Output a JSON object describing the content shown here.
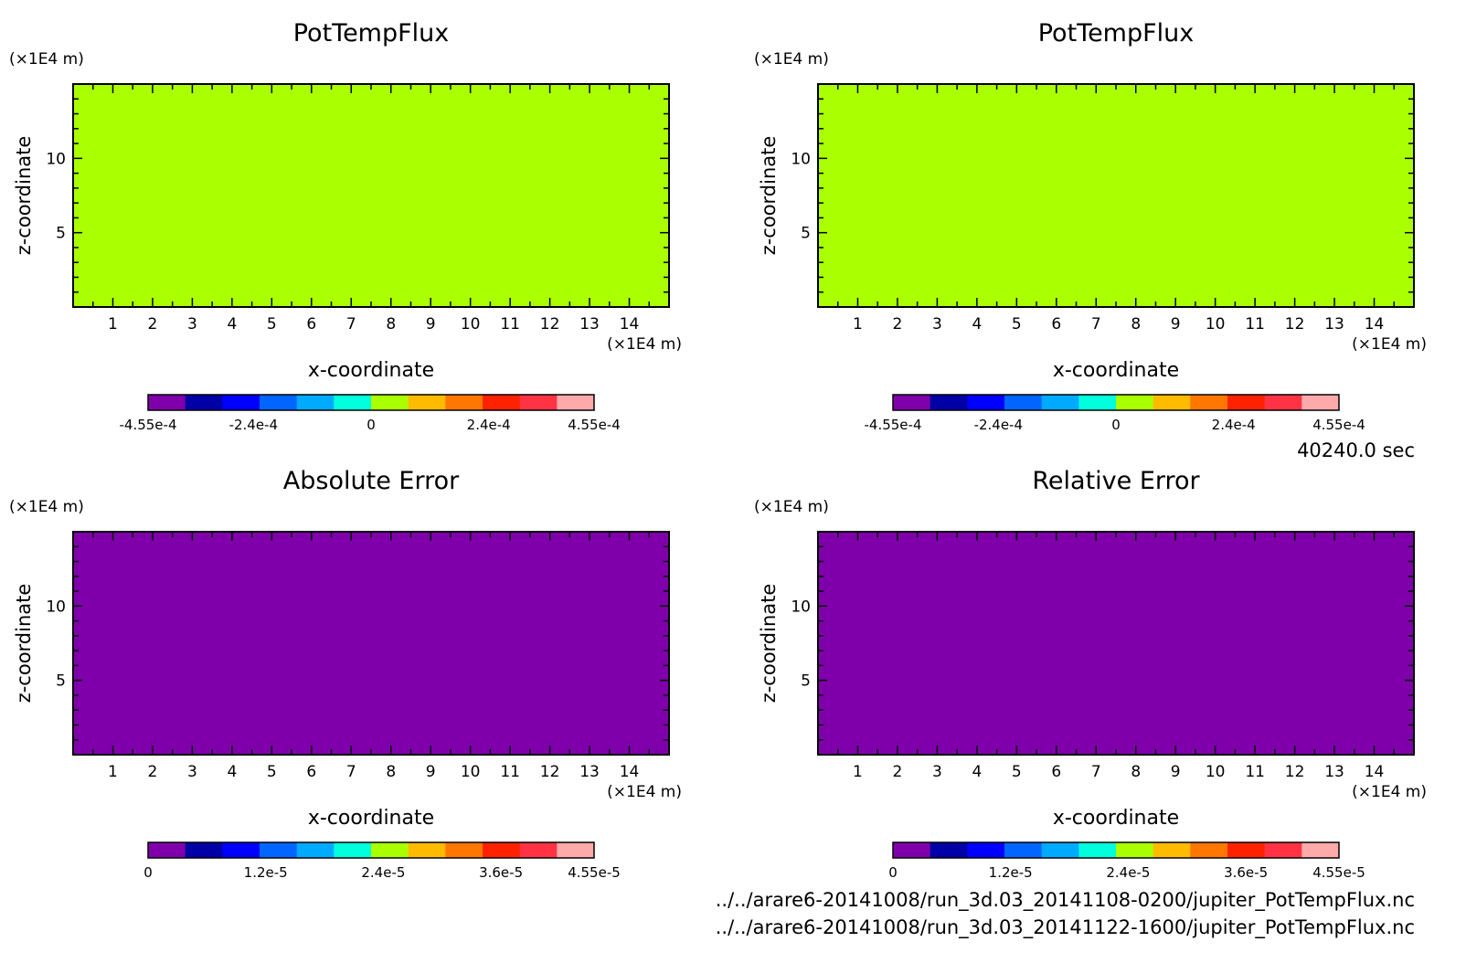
{
  "time_label": "40240.0 sec",
  "file_paths": [
    "../../arare6-20141008/run_3d.03_20141108-0200/jupiter_PotTempFlux.nc",
    "../../arare6-20141008/run_3d.03_20141122-1600/jupiter_PotTempFlux.nc"
  ],
  "colors": {
    "scale": [
      "#7f00ab",
      "#0000a6",
      "#0000ff",
      "#0066ff",
      "#00aaff",
      "#00ffdd",
      "#aaff00",
      "#ffbb00",
      "#ff7700",
      "#ff2200",
      "#ff3344",
      "#ffaaaa"
    ],
    "frame": "#000000"
  },
  "chart_data": [
    {
      "type": "heatmap",
      "title": "PotTempFlux",
      "xlabel": "x-coordinate",
      "ylabel": "z-coordinate",
      "x_unit": "(×1E4 m)",
      "y_unit": "(×1E4 m)",
      "xlim": [
        0,
        15
      ],
      "ylim": [
        0,
        15
      ],
      "x_ticks": [
        "1",
        "2",
        "3",
        "4",
        "5",
        "6",
        "7",
        "8",
        "9",
        "10",
        "11",
        "12",
        "13",
        "14"
      ],
      "y_ticks": [
        "5",
        "10"
      ],
      "field_color": "#aaff00",
      "field_value": 0,
      "colorbar": {
        "min": -0.000455,
        "max": 0.000455,
        "tick_labels": [
          "-4.55e-4",
          "-2.4e-4",
          "0",
          "2.4e-4",
          "4.55e-4"
        ]
      }
    },
    {
      "type": "heatmap",
      "title": "PotTempFlux",
      "xlabel": "x-coordinate",
      "ylabel": "z-coordinate",
      "x_unit": "(×1E4 m)",
      "y_unit": "(×1E4 m)",
      "xlim": [
        0,
        15
      ],
      "ylim": [
        0,
        15
      ],
      "x_ticks": [
        "1",
        "2",
        "3",
        "4",
        "5",
        "6",
        "7",
        "8",
        "9",
        "10",
        "11",
        "12",
        "13",
        "14"
      ],
      "y_ticks": [
        "5",
        "10"
      ],
      "field_color": "#aaff00",
      "field_value": 0,
      "colorbar": {
        "min": -0.000455,
        "max": 0.000455,
        "tick_labels": [
          "-4.55e-4",
          "-2.4e-4",
          "0",
          "2.4e-4",
          "4.55e-4"
        ]
      }
    },
    {
      "type": "heatmap",
      "title": "Absolute Error",
      "xlabel": "x-coordinate",
      "ylabel": "z-coordinate",
      "x_unit": "(×1E4 m)",
      "y_unit": "(×1E4 m)",
      "xlim": [
        0,
        15
      ],
      "ylim": [
        0,
        15
      ],
      "x_ticks": [
        "1",
        "2",
        "3",
        "4",
        "5",
        "6",
        "7",
        "8",
        "9",
        "10",
        "11",
        "12",
        "13",
        "14"
      ],
      "y_ticks": [
        "5",
        "10"
      ],
      "field_color": "#7f00ab",
      "field_value": 0,
      "colorbar": {
        "min": 0,
        "max": 4.55e-05,
        "tick_labels": [
          "0",
          "1.2e-5",
          "2.4e-5",
          "3.6e-5",
          "4.55e-5"
        ]
      }
    },
    {
      "type": "heatmap",
      "title": "Relative Error",
      "xlabel": "x-coordinate",
      "ylabel": "z-coordinate",
      "x_unit": "(×1E4 m)",
      "y_unit": "(×1E4 m)",
      "xlim": [
        0,
        15
      ],
      "ylim": [
        0,
        15
      ],
      "x_ticks": [
        "1",
        "2",
        "3",
        "4",
        "5",
        "6",
        "7",
        "8",
        "9",
        "10",
        "11",
        "12",
        "13",
        "14"
      ],
      "y_ticks": [
        "5",
        "10"
      ],
      "field_color": "#7f00ab",
      "field_value": 0,
      "colorbar": {
        "min": 0,
        "max": 4.55e-05,
        "tick_labels": [
          "0",
          "1.2e-5",
          "2.4e-5",
          "3.6e-5",
          "4.55e-5"
        ]
      }
    }
  ]
}
